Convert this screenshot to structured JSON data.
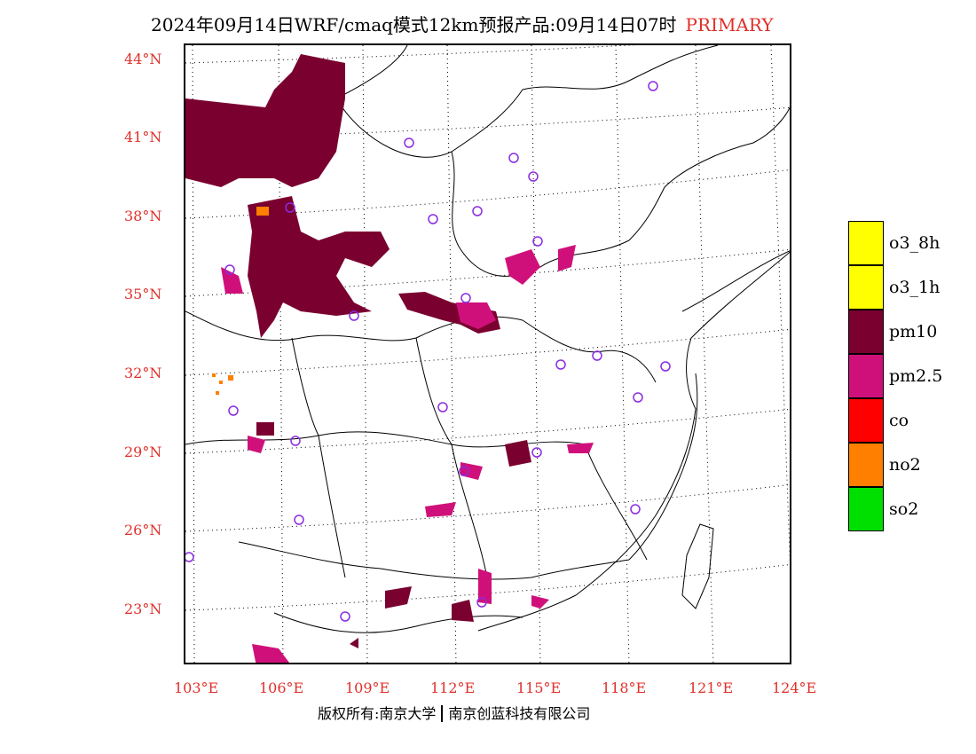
{
  "title": {
    "main": "2024年09月14日WRF/cmaq模式12km预报产品:09月14日07时",
    "tag": "PRIMARY"
  },
  "lat_labels": [
    "44°N",
    "41°N",
    "38°N",
    "35°N",
    "32°N",
    "29°N",
    "26°N",
    "23°N"
  ],
  "lon_labels": [
    "103°E",
    "106°E",
    "109°E",
    "112°E",
    "115°E",
    "118°E",
    "121°E",
    "124°E"
  ],
  "legend": [
    {
      "label": "o3_8h",
      "color": "#ffff00"
    },
    {
      "label": "o3_1h",
      "color": "#ffff00"
    },
    {
      "label": "pm10",
      "color": "#7a0030"
    },
    {
      "label": "pm2.5",
      "color": "#d0107a"
    },
    {
      "label": "co",
      "color": "#ff0000"
    },
    {
      "label": "no2",
      "color": "#ff7f00"
    },
    {
      "label": "so2",
      "color": "#00e000"
    }
  ],
  "footer": {
    "left": "版权所有:南京大学",
    "right": "南京创蓝科技有限公司"
  }
}
